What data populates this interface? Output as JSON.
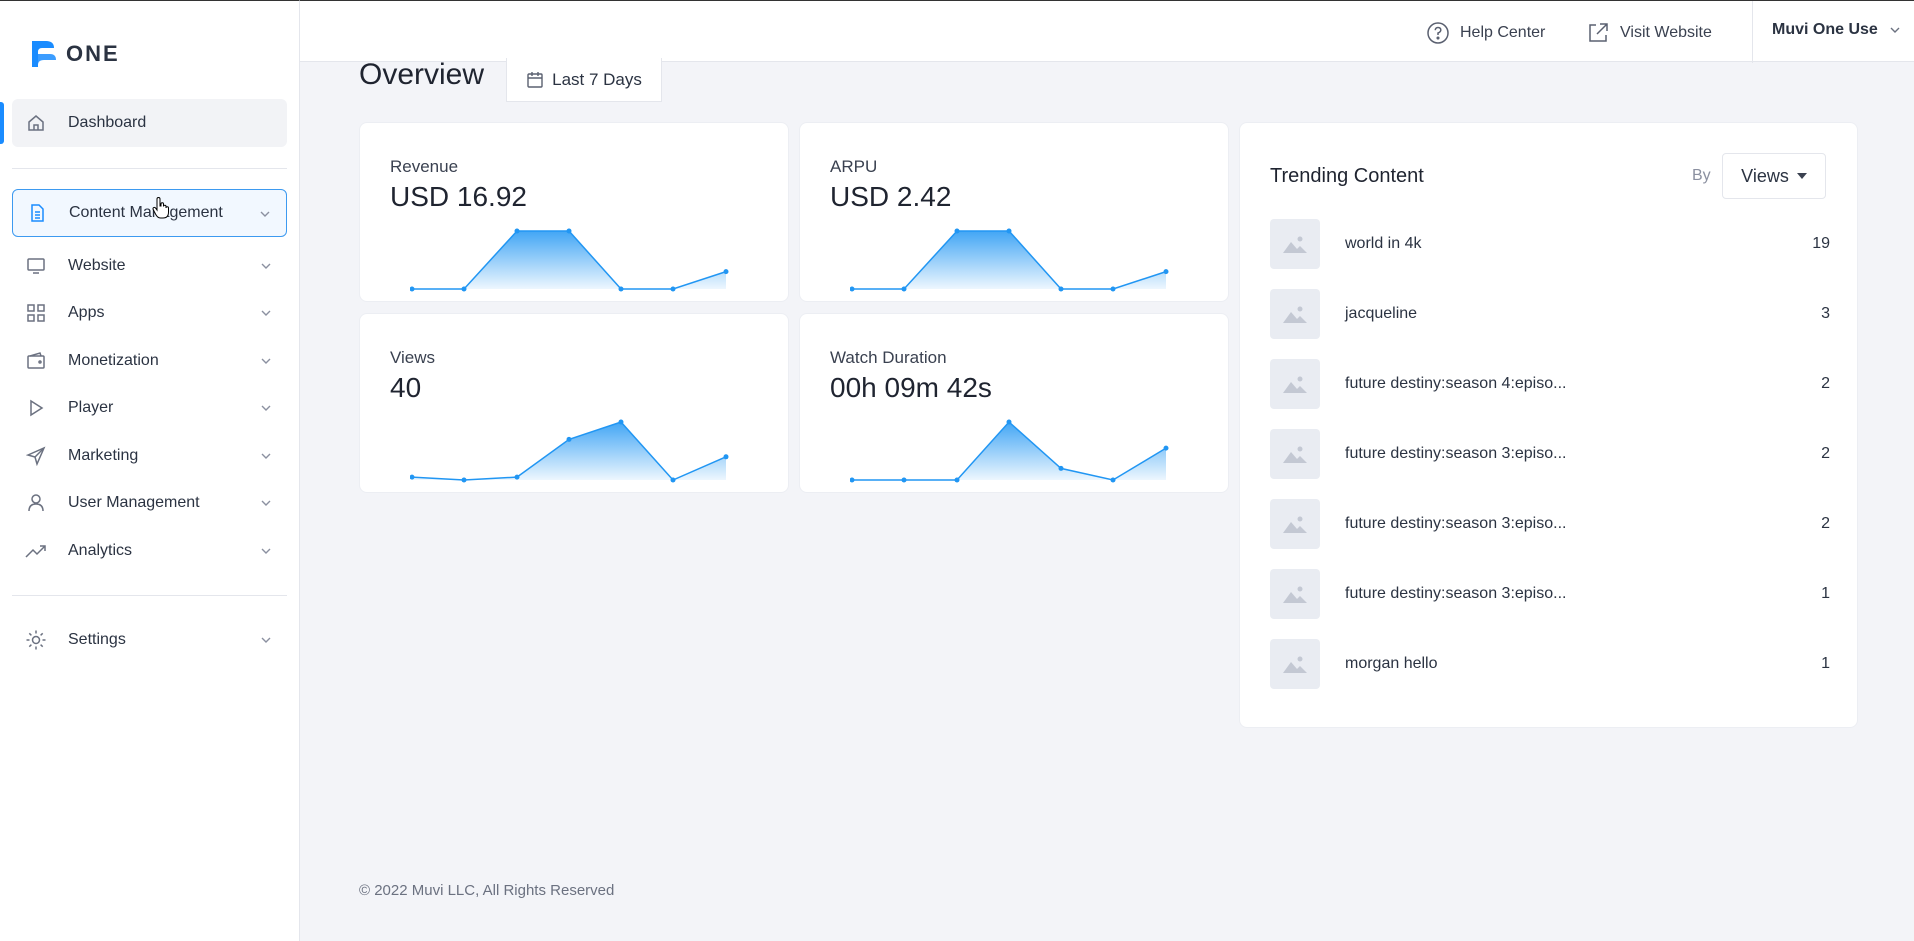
{
  "app": {
    "logo_text": "ONE"
  },
  "sidebar": {
    "items": [
      {
        "label": "Dashboard"
      },
      {
        "label": "Content Management"
      },
      {
        "label": "Website"
      },
      {
        "label": "Apps"
      },
      {
        "label": "Monetization"
      },
      {
        "label": "Player"
      },
      {
        "label": "Marketing"
      },
      {
        "label": "User Management"
      },
      {
        "label": "Analytics"
      },
      {
        "label": "Settings"
      }
    ]
  },
  "header": {
    "help_center": "Help Center",
    "visit_website": "Visit Website",
    "user": "Muvi One Use"
  },
  "overview": {
    "title": "Overview",
    "range": "Last 7 Days"
  },
  "metrics": [
    {
      "label": "Revenue",
      "value": "USD 16.92",
      "trend": [
        0,
        0,
        1,
        1,
        0,
        0,
        0.3
      ]
    },
    {
      "label": "ARPU",
      "value": "USD 2.42",
      "trend": [
        0,
        0,
        1,
        1,
        0,
        0,
        0.3
      ]
    },
    {
      "label": "Views",
      "value": "40",
      "trend": [
        0.05,
        0,
        0.05,
        0.7,
        1,
        0,
        0.4
      ]
    },
    {
      "label": "Watch Duration",
      "value": "00h 09m 42s",
      "trend": [
        0,
        0,
        0,
        1,
        0.2,
        0,
        0.55
      ]
    }
  ],
  "trending": {
    "title": "Trending Content",
    "by_label": "By",
    "sort_by": "Views",
    "items": [
      {
        "name": "world in 4k",
        "count": "19"
      },
      {
        "name": "jacqueline",
        "count": "3"
      },
      {
        "name": "future destiny:season 4:episo...",
        "count": "2"
      },
      {
        "name": "future destiny:season 3:episo...",
        "count": "2"
      },
      {
        "name": "future destiny:season 3:episo...",
        "count": "2"
      },
      {
        "name": "future destiny:season 3:episo...",
        "count": "1"
      },
      {
        "name": "morgan hello",
        "count": "1"
      }
    ]
  },
  "footer": {
    "copyright": "© 2022 Muvi LLC, All Rights Reserved"
  },
  "colors": {
    "accent": "#1a8cff",
    "line": "#2196f3"
  }
}
